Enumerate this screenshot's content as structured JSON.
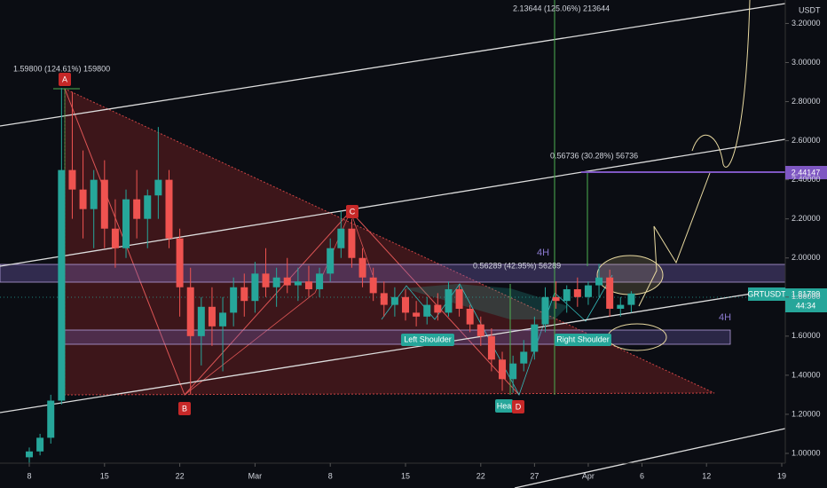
{
  "chart_data": {
    "type": "candlestick",
    "y_axis_unit": "USDT",
    "symbol": "GRTUSDT",
    "last_price": "1.81799",
    "countdown": "44:34",
    "target_price": "2.44147",
    "annotations": {
      "measure_a": "1.59800 (124.61%) 159800",
      "measure_top": "2.13644 (125.06%) 213644",
      "measure_target": "0.56736 (30.28%) 56736",
      "measure_neck": "0.56289 (42.95%) 56289",
      "timeframe_1": "4H",
      "timeframe_2": "4H"
    },
    "points": {
      "a": "A",
      "b": "B",
      "c": "C",
      "d": "D",
      "head": "Hea",
      "left_shoulder": "Left Shoulder",
      "right_shoulder": "Right Shoulder"
    },
    "colors": {
      "up": "#26a69a",
      "down": "#ef5350"
    },
    "x": [
      0,
      1,
      2,
      3,
      4,
      5,
      6,
      7,
      8,
      9,
      10,
      11,
      12,
      13,
      14,
      15,
      16,
      17,
      18,
      19,
      20,
      21,
      22,
      23,
      24,
      25,
      26,
      27,
      28,
      29,
      30,
      31,
      32,
      33,
      34,
      35,
      36,
      37,
      38,
      39,
      40,
      41,
      42,
      43,
      44,
      45,
      46,
      47,
      48,
      49,
      50,
      51,
      52,
      53,
      54,
      55,
      56
    ],
    "open": [
      0.98,
      1.01,
      1.08,
      1.27,
      2.45,
      2.35,
      2.25,
      2.4,
      2.15,
      2.05,
      2.3,
      2.2,
      2.32,
      2.4,
      2.1,
      1.85,
      1.6,
      1.75,
      1.65,
      1.72,
      1.85,
      1.78,
      1.92,
      1.85,
      1.9,
      1.86,
      1.88,
      1.84,
      1.92,
      2.05,
      2.15,
      2.0,
      1.9,
      1.82,
      1.76,
      1.8,
      1.72,
      1.7,
      1.76,
      1.72,
      1.84,
      1.74,
      1.66,
      1.6,
      1.48,
      1.38,
      1.46,
      1.52,
      1.66,
      1.8,
      1.78,
      1.84,
      1.8,
      1.86,
      1.9,
      1.74,
      1.76
    ],
    "high": [
      1.03,
      1.1,
      1.3,
      2.87,
      2.85,
      2.55,
      2.45,
      2.5,
      2.3,
      2.35,
      2.45,
      2.35,
      2.67,
      2.45,
      2.15,
      1.95,
      1.8,
      1.85,
      1.8,
      1.9,
      1.92,
      1.98,
      2.05,
      1.95,
      2.0,
      1.95,
      1.96,
      1.95,
      2.1,
      2.24,
      2.2,
      2.05,
      1.95,
      1.88,
      1.85,
      1.84,
      1.78,
      1.8,
      1.82,
      1.88,
      1.86,
      1.76,
      1.7,
      1.64,
      1.52,
      1.5,
      1.58,
      1.7,
      1.85,
      1.88,
      1.86,
      1.9,
      1.88,
      1.97,
      1.94,
      1.8,
      1.83
    ],
    "low": [
      0.95,
      0.99,
      1.05,
      1.25,
      2.2,
      2.1,
      2.05,
      2.05,
      1.95,
      2.0,
      2.1,
      2.05,
      2.2,
      2.05,
      1.7,
      1.3,
      1.45,
      1.55,
      1.42,
      1.65,
      1.7,
      1.72,
      1.8,
      1.75,
      1.82,
      1.78,
      1.8,
      1.8,
      1.88,
      2.0,
      1.95,
      1.85,
      1.78,
      1.7,
      1.7,
      1.68,
      1.65,
      1.66,
      1.68,
      1.7,
      1.7,
      1.62,
      1.55,
      1.42,
      1.32,
      1.31,
      1.42,
      1.48,
      1.62,
      1.74,
      1.72,
      1.75,
      1.76,
      1.8,
      1.7,
      1.7,
      1.72
    ],
    "close": [
      1.01,
      1.08,
      1.27,
      2.45,
      2.35,
      2.25,
      2.4,
      2.15,
      2.05,
      2.3,
      2.2,
      2.32,
      2.4,
      2.1,
      1.85,
      1.6,
      1.75,
      1.65,
      1.72,
      1.85,
      1.78,
      1.92,
      1.85,
      1.9,
      1.86,
      1.88,
      1.84,
      1.92,
      2.05,
      2.15,
      2.0,
      1.9,
      1.82,
      1.76,
      1.8,
      1.72,
      1.7,
      1.76,
      1.72,
      1.84,
      1.74,
      1.66,
      1.6,
      1.48,
      1.38,
      1.46,
      1.52,
      1.66,
      1.8,
      1.78,
      1.84,
      1.8,
      1.86,
      1.9,
      1.74,
      1.76,
      1.818
    ],
    "xlim": [
      0,
      70
    ],
    "xticks": [
      {
        "value": 0,
        "label": "8"
      },
      {
        "value": 7,
        "label": "15"
      },
      {
        "value": 14,
        "label": "22"
      },
      {
        "value": 21,
        "label": "Mar"
      },
      {
        "value": 28,
        "label": "8"
      },
      {
        "value": 35,
        "label": "15"
      },
      {
        "value": 42,
        "label": "22"
      },
      {
        "value": 47,
        "label": "27"
      },
      {
        "value": 52,
        "label": "Apr"
      },
      {
        "value": 57,
        "label": "6"
      },
      {
        "value": 63,
        "label": "12"
      },
      {
        "value": 70,
        "label": "19"
      }
    ],
    "ylim": [
      0.95,
      3.32
    ],
    "yticks": [
      {
        "value": 1.0,
        "label": "1.00000"
      },
      {
        "value": 1.2,
        "label": "1.20000"
      },
      {
        "value": 1.4,
        "label": "1.40000"
      },
      {
        "value": 1.6,
        "label": "1.60000"
      },
      {
        "value": 1.8,
        "label": "1.80000"
      },
      {
        "value": 2.0,
        "label": "2.00000"
      },
      {
        "value": 2.2,
        "label": "2.20000"
      },
      {
        "value": 2.4,
        "label": "2.40000"
      },
      {
        "value": 2.6,
        "label": "2.60000"
      },
      {
        "value": 2.8,
        "label": "2.80000"
      },
      {
        "value": 3.0,
        "label": "3.00000"
      },
      {
        "value": 3.2,
        "label": "3.20000"
      }
    ]
  }
}
